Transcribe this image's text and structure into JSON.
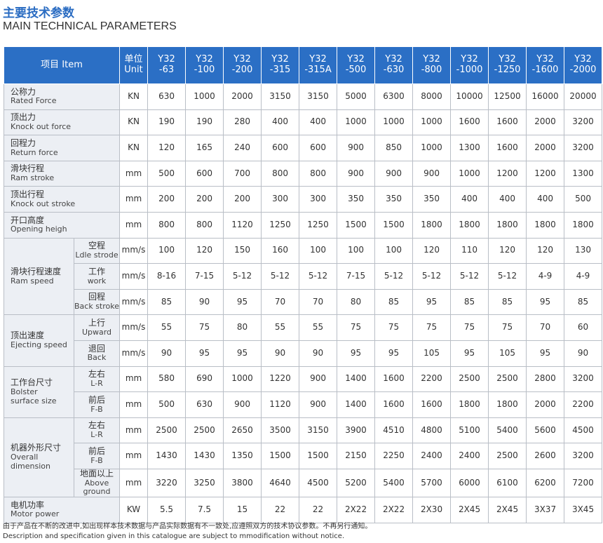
{
  "header": {
    "title": "主要技术参数",
    "subtitle": "MAIN TECHNICAL PARAMETERS"
  },
  "table": {
    "item": "项目 Item",
    "unit": [
      "单位",
      "Unit"
    ],
    "models": [
      [
        "Y32",
        "-63"
      ],
      [
        "Y32",
        "-100"
      ],
      [
        "Y32",
        "-200"
      ],
      [
        "Y32",
        "-315"
      ],
      [
        "Y32",
        "-315A"
      ],
      [
        "Y32",
        "-500"
      ],
      [
        "Y32",
        "-630"
      ],
      [
        "Y32",
        "-800"
      ],
      [
        "Y32",
        "-1000"
      ],
      [
        "Y32",
        "-1250"
      ],
      [
        "Y32",
        "-1600"
      ],
      [
        "Y32",
        "-2000"
      ]
    ],
    "groups": [
      {
        "label": [
          "公称力",
          "Rated Force"
        ],
        "rows": [
          {
            "unit": "KN",
            "values": [
              "630",
              "1000",
              "2000",
              "3150",
              "3150",
              "5000",
              "6300",
              "8000",
              "10000",
              "12500",
              "16000",
              "20000"
            ]
          }
        ]
      },
      {
        "label": [
          "顶出力",
          "Knock out force"
        ],
        "rows": [
          {
            "unit": "KN",
            "values": [
              "190",
              "190",
              "280",
              "400",
              "400",
              "1000",
              "1000",
              "1000",
              "1600",
              "1600",
              "2000",
              "3200"
            ]
          }
        ]
      },
      {
        "label": [
          "回程力",
          "Return force"
        ],
        "rows": [
          {
            "unit": "KN",
            "values": [
              "120",
              "165",
              "240",
              "600",
              "600",
              "900",
              "850",
              "1000",
              "1300",
              "1600",
              "2000",
              "3200"
            ]
          }
        ]
      },
      {
        "label": [
          "滑块行程",
          "Ram stroke"
        ],
        "rows": [
          {
            "unit": "mm",
            "values": [
              "500",
              "600",
              "700",
              "800",
              "800",
              "900",
              "900",
              "900",
              "1000",
              "1200",
              "1200",
              "1300"
            ]
          }
        ]
      },
      {
        "label": [
          "顶出行程",
          "Knock out stroke"
        ],
        "rows": [
          {
            "unit": "mm",
            "values": [
              "200",
              "200",
              "200",
              "300",
              "300",
              "350",
              "350",
              "350",
              "400",
              "400",
              "400",
              "500"
            ]
          }
        ]
      },
      {
        "label": [
          "开口高度",
          "Opening heigh"
        ],
        "rows": [
          {
            "unit": "mm",
            "values": [
              "800",
              "800",
              "1120",
              "1250",
              "1250",
              "1500",
              "1500",
              "1800",
              "1800",
              "1800",
              "1800",
              "1800"
            ]
          }
        ]
      },
      {
        "label": [
          "滑块行程速度",
          "Ram speed"
        ],
        "rows": [
          {
            "sub": [
              "空程",
              "Ldle strode"
            ],
            "unit": "mm/s",
            "values": [
              "100",
              "120",
              "150",
              "160",
              "100",
              "100",
              "100",
              "120",
              "110",
              "120",
              "120",
              "130"
            ]
          },
          {
            "sub": [
              "工作",
              "work"
            ],
            "unit": "mm/s",
            "values": [
              "8-16",
              "7-15",
              "5-12",
              "5-12",
              "5-12",
              "7-15",
              "5-12",
              "5-12",
              "5-12",
              "5-12",
              "4-9",
              "4-9"
            ]
          },
          {
            "sub": [
              "回程",
              "Back stroke"
            ],
            "unit": "mm/s",
            "values": [
              "85",
              "90",
              "95",
              "70",
              "70",
              "80",
              "85",
              "95",
              "85",
              "85",
              "95",
              "85"
            ]
          }
        ]
      },
      {
        "label": [
          "顶出速度",
          "Ejecting speed"
        ],
        "rows": [
          {
            "sub": [
              "上行",
              "Upward"
            ],
            "unit": "mm/s",
            "values": [
              "55",
              "75",
              "80",
              "55",
              "55",
              "75",
              "75",
              "75",
              "75",
              "75",
              "70",
              "60"
            ]
          },
          {
            "sub": [
              "退回",
              "Back"
            ],
            "unit": "mm/s",
            "values": [
              "90",
              "95",
              "95",
              "90",
              "90",
              "95",
              "95",
              "105",
              "95",
              "105",
              "95",
              "90"
            ]
          }
        ]
      },
      {
        "label": [
          "工作台尺寸",
          "Bolster",
          "surface size"
        ],
        "rows": [
          {
            "sub": [
              "左右",
              "L-R"
            ],
            "unit": "mm",
            "values": [
              "580",
              "690",
              "1000",
              "1220",
              "900",
              "1400",
              "1600",
              "2200",
              "2500",
              "2500",
              "2800",
              "3200"
            ]
          },
          {
            "sub": [
              "前后",
              "F-B"
            ],
            "unit": "mm",
            "values": [
              "500",
              "630",
              "900",
              "1120",
              "900",
              "1400",
              "1600",
              "1600",
              "1800",
              "1800",
              "2000",
              "2200"
            ]
          }
        ]
      },
      {
        "label": [
          "机器外形尺寸",
          "Overall",
          "dimension"
        ],
        "rows": [
          {
            "sub": [
              "左右",
              "L-R"
            ],
            "unit": "mm",
            "values": [
              "2500",
              "2500",
              "2650",
              "3500",
              "3150",
              "3900",
              "4510",
              "4800",
              "5100",
              "5400",
              "5600",
              "4500"
            ]
          },
          {
            "sub": [
              "前后",
              "F-B"
            ],
            "unit": "mm",
            "values": [
              "1430",
              "1430",
              "1350",
              "1500",
              "1500",
              "2150",
              "2250",
              "2400",
              "2400",
              "2500",
              "2600",
              "3200"
            ]
          },
          {
            "sub": [
              "地面以上",
              "Above ground"
            ],
            "unit": "mm",
            "values": [
              "3220",
              "3250",
              "3800",
              "4640",
              "4500",
              "5200",
              "5400",
              "5700",
              "6000",
              "6100",
              "6200",
              "7200"
            ]
          }
        ]
      },
      {
        "label": [
          "电机功率",
          "Motor power"
        ],
        "rows": [
          {
            "unit": "KW",
            "values": [
              "5.5",
              "7.5",
              "15",
              "22",
              "22",
              "2X22",
              "2X22",
              "2X30",
              "2X45",
              "2X45",
              "3X37",
              "3X45"
            ]
          }
        ]
      }
    ]
  },
  "notes": [
    "由于产品在不断的改进中,如出现样本技术数据与产品实际数据有不一致处,应遵照双方的技术协议参数。不再另行通知。",
    "Description and specification given in this catalogue are subject to mmodification without notice."
  ]
}
